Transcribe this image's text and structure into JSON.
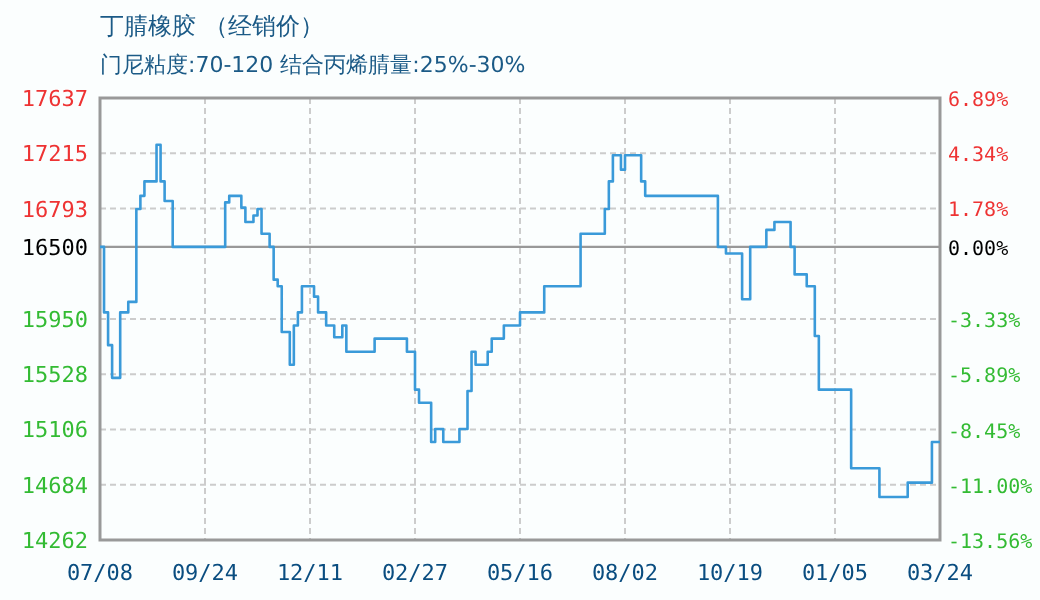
{
  "chart_data": {
    "type": "step",
    "title": "丁腈橡胶 （经销价）",
    "subtitle": "门尼粘度:70-120 结合丙烯腈量:25%-30%",
    "categories": [
      "07/08",
      null,
      null,
      null,
      null,
      null,
      null,
      null,
      null,
      null,
      null,
      null,
      null,
      null,
      null,
      null,
      null,
      null,
      null,
      null,
      null,
      null,
      null,
      null,
      null,
      null,
      "09/24",
      null,
      null,
      null,
      null,
      null,
      null,
      null,
      null,
      null,
      null,
      null,
      null,
      null,
      null,
      null,
      null,
      null,
      null,
      null,
      null,
      null,
      null,
      null,
      null,
      null,
      "12/11",
      null,
      null,
      null,
      null,
      null,
      null,
      null,
      null,
      null,
      null,
      null,
      null,
      null,
      null,
      null,
      null,
      null,
      null,
      null,
      null,
      null,
      null,
      null,
      null,
      null,
      "02/27",
      null,
      null,
      null,
      null,
      null,
      null,
      null,
      null,
      null,
      null,
      null,
      null,
      null,
      null,
      null,
      null,
      null,
      null,
      null,
      null,
      null,
      null,
      null,
      null,
      null,
      "05/16",
      null,
      null,
      null,
      null,
      null,
      null,
      null,
      null,
      null,
      null,
      null,
      null,
      null,
      null,
      null,
      null,
      null,
      null,
      null,
      null,
      null,
      null,
      null,
      null,
      null,
      "08/02",
      null,
      null,
      null,
      null,
      null,
      null,
      null,
      null,
      null,
      null,
      null,
      null,
      null,
      null,
      null,
      null,
      null,
      null,
      null,
      null,
      null,
      null,
      null,
      null,
      null,
      "10/19",
      null,
      null,
      null,
      null,
      null,
      null,
      null,
      null,
      null,
      null,
      null,
      null,
      null,
      null,
      null,
      null,
      null,
      null,
      null,
      null,
      null,
      null,
      null,
      null,
      null,
      "01/05",
      null,
      null,
      null,
      null,
      null,
      null,
      null,
      null,
      null,
      null,
      null,
      null,
      null,
      null,
      null,
      null,
      null,
      null,
      null,
      null,
      null,
      null,
      null,
      null,
      null,
      "03/24"
    ],
    "series": [
      {
        "color": "#3a9ad9",
        "values": [
          16500,
          16000,
          15750,
          15500,
          15500,
          16000,
          16000,
          16080,
          16080,
          16790,
          16890,
          17000,
          17000,
          17000,
          17280,
          17000,
          16850,
          16850,
          16500,
          16500,
          16500,
          16500,
          16500,
          16500,
          16500,
          16500,
          16500,
          16500,
          16500,
          16500,
          16500,
          16840,
          16890,
          16890,
          16890,
          16800,
          16690,
          16690,
          16740,
          16790,
          16600,
          16600,
          16500,
          16250,
          16200,
          15850,
          15850,
          15600,
          15900,
          16000,
          16200,
          16200,
          16200,
          16120,
          16000,
          16000,
          15900,
          15900,
          15810,
          15810,
          15900,
          15700,
          15700,
          15700,
          15700,
          15700,
          15700,
          15700,
          15800,
          15800,
          15800,
          15800,
          15800,
          15800,
          15800,
          15800,
          15700,
          15700,
          15410,
          15310,
          15310,
          15310,
          15010,
          15110,
          15110,
          15010,
          15010,
          15010,
          15010,
          15110,
          15110,
          15400,
          15700,
          15600,
          15600,
          15600,
          15700,
          15800,
          15800,
          15800,
          15900,
          15900,
          15900,
          15900,
          16000,
          16000,
          16000,
          16000,
          16000,
          16000,
          16200,
          16200,
          16200,
          16200,
          16200,
          16200,
          16200,
          16200,
          16200,
          16600,
          16600,
          16600,
          16600,
          16600,
          16600,
          16790,
          17000,
          17200,
          17200,
          17090,
          17200,
          17200,
          17200,
          17200,
          17000,
          16890,
          16890,
          16890,
          16890,
          16890,
          16890,
          16890,
          16890,
          16890,
          16890,
          16890,
          16890,
          16890,
          16890,
          16890,
          16890,
          16890,
          16890,
          16500,
          16500,
          16450,
          16450,
          16450,
          16450,
          16100,
          16100,
          16500,
          16500,
          16500,
          16500,
          16630,
          16630,
          16690,
          16690,
          16690,
          16690,
          16500,
          16290,
          16290,
          16290,
          16200,
          16200,
          15820,
          15410,
          15410,
          15410,
          15410,
          15410,
          15410,
          15410,
          15410,
          14810,
          14810,
          14810,
          14810,
          14810,
          14810,
          14810,
          14590,
          14590,
          14590,
          14590,
          14590,
          14590,
          14590,
          14700,
          14700,
          14700,
          14700,
          14700,
          14700,
          15010,
          15010,
          15010
        ]
      }
    ],
    "ylim": [
      14262,
      17637
    ],
    "yticks": [
      14262,
      14684,
      15106,
      15528,
      15950,
      16500,
      16793,
      17215,
      17637
    ],
    "y2lim": [
      -13.56,
      6.89
    ],
    "y2ticks": [
      {
        "value": -13.56,
        "label": "-13.56%"
      },
      {
        "value": -11.0,
        "label": "-11.00%"
      },
      {
        "value": -8.45,
        "label": "-8.45%"
      },
      {
        "value": -5.89,
        "label": "-5.89%"
      },
      {
        "value": -3.33,
        "label": "-3.33%"
      },
      {
        "value": 0,
        "label": "0.00%"
      },
      {
        "value": 1.78,
        "label": "1.78%"
      },
      {
        "value": 4.34,
        "label": "4.34%"
      },
      {
        "value": 6.89,
        "label": "6.89%"
      }
    ],
    "ref_lines": [
      {
        "axis": "y",
        "value": 16500,
        "color": "#999999"
      }
    ],
    "grid": true
  }
}
